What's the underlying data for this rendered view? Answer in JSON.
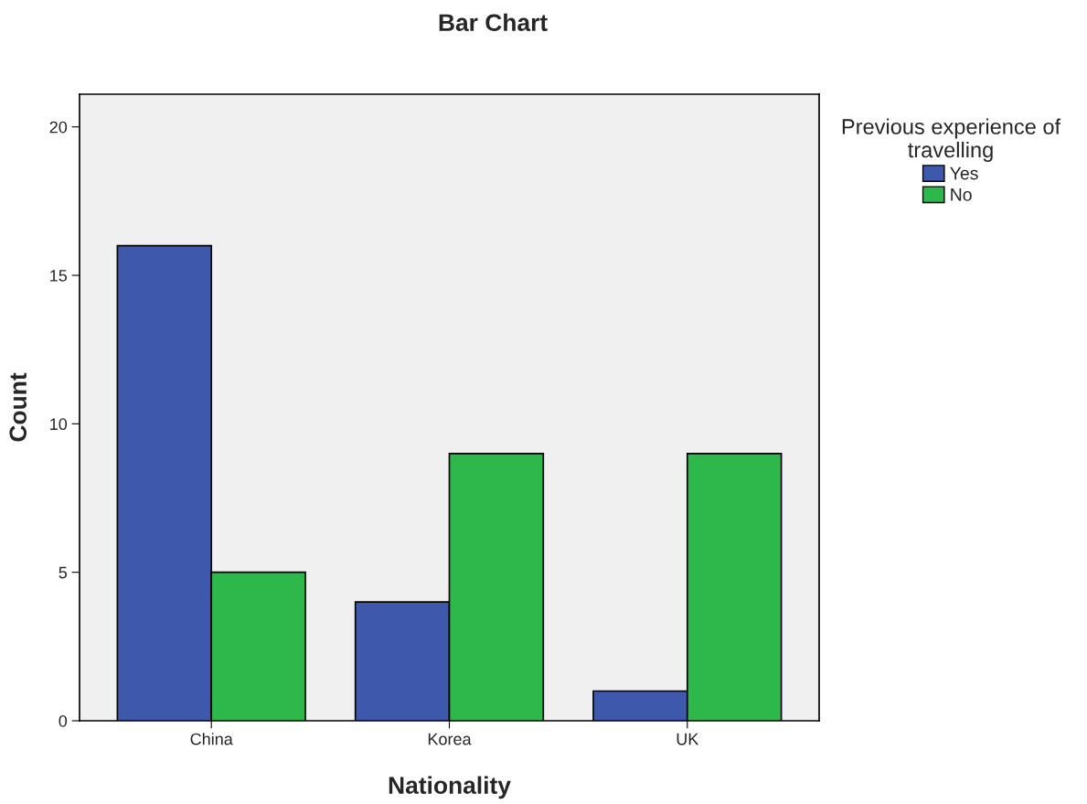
{
  "chart_data": {
    "type": "bar",
    "title": "Bar Chart",
    "xlabel": "Nationality",
    "ylabel": "Count",
    "categories": [
      "China",
      "Korea",
      "UK"
    ],
    "series": [
      {
        "name": "Yes",
        "color": "#3e58ac",
        "values": [
          16,
          4,
          1
        ]
      },
      {
        "name": "No",
        "color": "#2eb84b",
        "values": [
          5,
          9,
          9
        ]
      }
    ],
    "legend_title": "Previous experience of\ntravelling",
    "ylim": [
      0,
      21.1
    ],
    "yticks": [
      0,
      5,
      10,
      15,
      20
    ],
    "grid": false,
    "legend": "top right"
  }
}
